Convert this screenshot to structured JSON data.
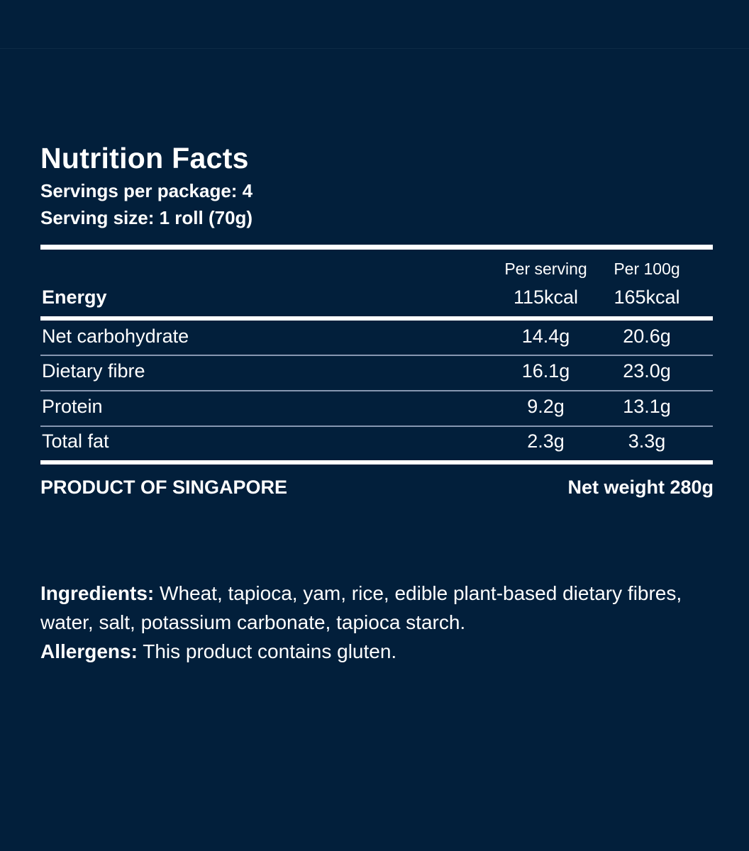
{
  "title": "Nutrition Facts",
  "servings_per_package": "Servings per package: 4",
  "serving_size": "Serving size: 1 roll (70g)",
  "columns": {
    "per_serving": "Per serving",
    "per_100g": "Per 100g"
  },
  "energy": {
    "label": "Energy",
    "per_serving": "115kcal",
    "per_100g": "165kcal"
  },
  "rows": [
    {
      "label": "Net carbohydrate",
      "per_serving": "14.4g",
      "per_100g": "20.6g"
    },
    {
      "label": "Dietary fibre",
      "per_serving": "16.1g",
      "per_100g": "23.0g"
    },
    {
      "label": "Protein",
      "per_serving": "9.2g",
      "per_100g": "13.1g"
    },
    {
      "label": "Total fat",
      "per_serving": "2.3g",
      "per_100g": "3.3g"
    }
  ],
  "origin": "PRODUCT OF SINGAPORE",
  "net_weight": "Net weight 280g",
  "ingredients": {
    "label": "Ingredients:",
    "text": " Wheat, tapioca, yam, rice, edible plant-based dietary fibres, water, salt, potassium carbonate, tapioca starch."
  },
  "allergens": {
    "label": "Allergens:",
    "text": " This product contains gluten."
  }
}
